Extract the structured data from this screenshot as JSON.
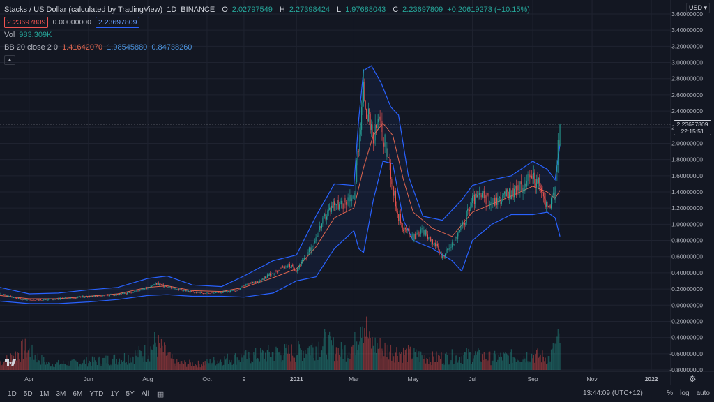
{
  "header": {
    "symbol": "Stacks / US Dollar (calculated by TradingView)",
    "interval": "1D",
    "exchange": "BINANCE",
    "ohlc": {
      "o_label": "O",
      "o": "2.02797549",
      "h_label": "H",
      "h": "2.27398424",
      "l_label": "L",
      "l": "1.97688043",
      "c_label": "C",
      "c": "2.23697809",
      "change": "+0.20619273 (+10.15%)"
    },
    "sell_price": "2.23697809",
    "spread": "0.00000000",
    "buy_price": "2.23697809",
    "vol_label": "Vol",
    "vol_value": "983.309K",
    "bb_label": "BB 20 close 2 0",
    "bb_basis": "1.41642070",
    "bb_upper": "1.98545880",
    "bb_lower": "0.84738260",
    "collapse_icon": "chevron-up-icon"
  },
  "currency": "USD",
  "price_tag": {
    "price": "2.23697809",
    "countdown": "22:15:51"
  },
  "bottom": {
    "timeframes": [
      "1D",
      "5D",
      "1M",
      "3M",
      "6M",
      "YTD",
      "1Y",
      "5Y",
      "All"
    ],
    "clock": "13:44:09 (UTC+12)",
    "percent": "%",
    "log": "log",
    "auto": "auto"
  },
  "colors": {
    "background": "#131722",
    "up": "#26a69a",
    "down": "#ef5350",
    "bb_band": "#2962ff",
    "bb_basis": "#e0664f"
  },
  "chart_data": {
    "type": "candlestick",
    "y_axis": {
      "ticks": [
        "3.60000000",
        "3.40000000",
        "3.20000000",
        "3.00000000",
        "2.80000000",
        "2.60000000",
        "2.40000000",
        "2.20000000",
        "2.00000000",
        "1.80000000",
        "1.60000000",
        "1.40000000",
        "1.20000000",
        "1.00000000",
        "0.80000000",
        "0.60000000",
        "0.40000000",
        "0.20000000",
        "0.00000000",
        "-0.20000000",
        "-0.40000000",
        "-0.60000000",
        "-0.80000000"
      ],
      "tick_values": [
        3.6,
        3.4,
        3.2,
        3.0,
        2.8,
        2.6,
        2.4,
        2.2,
        2.0,
        1.8,
        1.6,
        1.4,
        1.2,
        1.0,
        0.8,
        0.6,
        0.4,
        0.2,
        0.0,
        -0.2,
        -0.4,
        -0.6,
        -0.8
      ],
      "range": [
        -0.8,
        3.6
      ]
    },
    "x_axis": {
      "labels": [
        "Apr",
        "Jun",
        "Aug",
        "Oct",
        "9",
        "2021",
        "Mar",
        "May",
        "Jul",
        "Sep",
        "Nov",
        "2022"
      ],
      "label_days": [
        0,
        61,
        122,
        183,
        221,
        275,
        334,
        395,
        456,
        518,
        579,
        640
      ],
      "range_days": [
        -30,
        660
      ]
    },
    "series": [
      {
        "name": "Close",
        "points": [
          [
            -30,
            0.14
          ],
          [
            -15,
            0.09
          ],
          [
            0,
            0.06
          ],
          [
            15,
            0.07
          ],
          [
            30,
            0.08
          ],
          [
            45,
            0.09
          ],
          [
            61,
            0.11
          ],
          [
            76,
            0.12
          ],
          [
            91,
            0.13
          ],
          [
            106,
            0.16
          ],
          [
            122,
            0.22
          ],
          [
            132,
            0.27
          ],
          [
            142,
            0.22
          ],
          [
            152,
            0.2
          ],
          [
            168,
            0.16
          ],
          [
            183,
            0.15
          ],
          [
            198,
            0.16
          ],
          [
            213,
            0.18
          ],
          [
            221,
            0.24
          ],
          [
            236,
            0.3
          ],
          [
            251,
            0.4
          ],
          [
            266,
            0.5
          ],
          [
            275,
            0.44
          ],
          [
            285,
            0.6
          ],
          [
            295,
            0.85
          ],
          [
            305,
            1.1
          ],
          [
            314,
            1.28
          ],
          [
            320,
            1.22
          ],
          [
            330,
            1.35
          ],
          [
            334,
            1.3
          ],
          [
            339,
            2.0
          ],
          [
            344,
            2.65
          ],
          [
            349,
            2.3
          ],
          [
            354,
            2.0
          ],
          [
            359,
            2.3
          ],
          [
            364,
            2.1
          ],
          [
            370,
            1.8
          ],
          [
            375,
            1.4
          ],
          [
            380,
            1.1
          ],
          [
            385,
            0.95
          ],
          [
            390,
            0.9
          ],
          [
            395,
            0.85
          ],
          [
            405,
            0.92
          ],
          [
            415,
            0.8
          ],
          [
            425,
            0.6
          ],
          [
            435,
            0.75
          ],
          [
            445,
            0.95
          ],
          [
            456,
            1.3
          ],
          [
            466,
            1.35
          ],
          [
            476,
            1.28
          ],
          [
            486,
            1.32
          ],
          [
            496,
            1.4
          ],
          [
            506,
            1.45
          ],
          [
            518,
            1.6
          ],
          [
            526,
            1.45
          ],
          [
            533,
            1.2
          ],
          [
            540,
            1.35
          ],
          [
            546,
            2.237
          ]
        ]
      },
      {
        "name": "BB upper",
        "points": [
          [
            -30,
            0.22
          ],
          [
            0,
            0.14
          ],
          [
            30,
            0.15
          ],
          [
            61,
            0.19
          ],
          [
            91,
            0.22
          ],
          [
            122,
            0.33
          ],
          [
            142,
            0.36
          ],
          [
            168,
            0.25
          ],
          [
            198,
            0.23
          ],
          [
            221,
            0.36
          ],
          [
            251,
            0.55
          ],
          [
            275,
            0.62
          ],
          [
            295,
            1.1
          ],
          [
            314,
            1.5
          ],
          [
            334,
            1.48
          ],
          [
            339,
            2.3
          ],
          [
            344,
            2.9
          ],
          [
            352,
            2.96
          ],
          [
            362,
            2.75
          ],
          [
            372,
            2.45
          ],
          [
            380,
            2.35
          ],
          [
            390,
            1.6
          ],
          [
            405,
            1.1
          ],
          [
            425,
            1.05
          ],
          [
            445,
            1.3
          ],
          [
            456,
            1.48
          ],
          [
            476,
            1.55
          ],
          [
            496,
            1.6
          ],
          [
            518,
            1.78
          ],
          [
            533,
            1.68
          ],
          [
            541,
            1.55
          ],
          [
            546,
            1.99
          ]
        ]
      },
      {
        "name": "BB basis",
        "points": [
          [
            -30,
            0.12
          ],
          [
            0,
            0.08
          ],
          [
            30,
            0.08
          ],
          [
            61,
            0.11
          ],
          [
            91,
            0.14
          ],
          [
            122,
            0.22
          ],
          [
            142,
            0.24
          ],
          [
            168,
            0.18
          ],
          [
            198,
            0.17
          ],
          [
            221,
            0.22
          ],
          [
            251,
            0.34
          ],
          [
            275,
            0.45
          ],
          [
            295,
            0.72
          ],
          [
            314,
            1.08
          ],
          [
            334,
            1.2
          ],
          [
            344,
            1.7
          ],
          [
            354,
            2.1
          ],
          [
            364,
            2.25
          ],
          [
            374,
            2.1
          ],
          [
            385,
            1.55
          ],
          [
            395,
            1.15
          ],
          [
            415,
            0.95
          ],
          [
            435,
            0.85
          ],
          [
            456,
            1.15
          ],
          [
            476,
            1.25
          ],
          [
            496,
            1.35
          ],
          [
            518,
            1.47
          ],
          [
            533,
            1.4
          ],
          [
            541,
            1.32
          ],
          [
            546,
            1.42
          ]
        ]
      },
      {
        "name": "BB lower",
        "points": [
          [
            -30,
            0.05
          ],
          [
            0,
            0.02
          ],
          [
            30,
            0.02
          ],
          [
            61,
            0.04
          ],
          [
            91,
            0.07
          ],
          [
            122,
            0.12
          ],
          [
            142,
            0.13
          ],
          [
            168,
            0.11
          ],
          [
            198,
            0.11
          ],
          [
            221,
            0.1
          ],
          [
            251,
            0.15
          ],
          [
            275,
            0.3
          ],
          [
            295,
            0.35
          ],
          [
            314,
            0.7
          ],
          [
            334,
            0.92
          ],
          [
            339,
            0.7
          ],
          [
            344,
            0.65
          ],
          [
            354,
            1.3
          ],
          [
            364,
            1.78
          ],
          [
            374,
            1.75
          ],
          [
            385,
            1.05
          ],
          [
            395,
            0.8
          ],
          [
            415,
            0.7
          ],
          [
            435,
            0.55
          ],
          [
            445,
            0.42
          ],
          [
            456,
            0.8
          ],
          [
            476,
            1.0
          ],
          [
            496,
            1.12
          ],
          [
            518,
            1.12
          ],
          [
            533,
            1.15
          ],
          [
            541,
            1.08
          ],
          [
            546,
            0.85
          ]
        ]
      }
    ],
    "volume": [
      [
        -25,
        0.15
      ],
      [
        -5,
        0.35
      ],
      [
        20,
        0.1
      ],
      [
        45,
        0.12
      ],
      [
        70,
        0.15
      ],
      [
        95,
        0.2
      ],
      [
        122,
        0.3
      ],
      [
        130,
        0.45
      ],
      [
        150,
        0.12
      ],
      [
        175,
        0.1
      ],
      [
        200,
        0.18
      ],
      [
        225,
        0.22
      ],
      [
        250,
        0.28
      ],
      [
        275,
        0.3
      ],
      [
        290,
        0.38
      ],
      [
        305,
        0.45
      ],
      [
        320,
        0.3
      ],
      [
        335,
        0.42
      ],
      [
        342,
        1.0
      ],
      [
        350,
        0.45
      ],
      [
        365,
        0.35
      ],
      [
        380,
        0.3
      ],
      [
        395,
        0.25
      ],
      [
        415,
        0.2
      ],
      [
        435,
        0.22
      ],
      [
        456,
        0.25
      ],
      [
        475,
        0.2
      ],
      [
        495,
        0.22
      ],
      [
        518,
        0.25
      ],
      [
        535,
        0.2
      ],
      [
        546,
        0.52
      ]
    ]
  }
}
